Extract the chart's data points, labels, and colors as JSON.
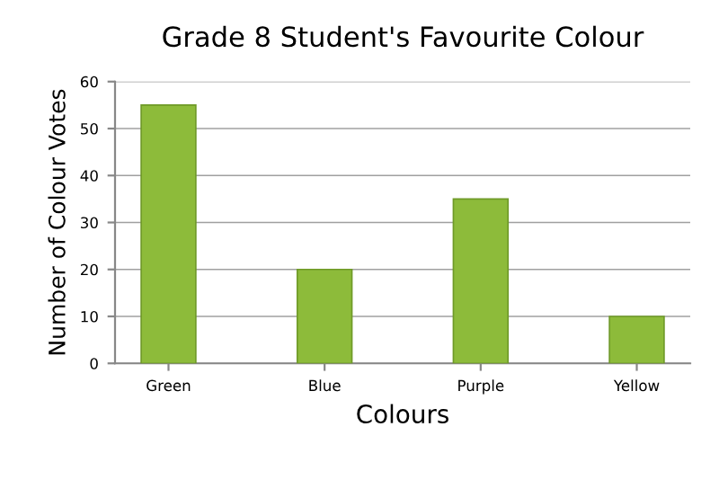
{
  "chart_data": {
    "type": "bar",
    "title": "Grade 8 Student's Favourite Colour",
    "xlabel": "Colours",
    "ylabel": "Number of Colour Votes",
    "categories": [
      "Green",
      "Blue",
      "Purple",
      "Yellow"
    ],
    "values": [
      55,
      20,
      35,
      10
    ],
    "color": "#8dbb3a",
    "ylim": [
      0,
      60
    ],
    "yticks": [
      0,
      10,
      20,
      30,
      40,
      50,
      60
    ],
    "grid": "y"
  }
}
